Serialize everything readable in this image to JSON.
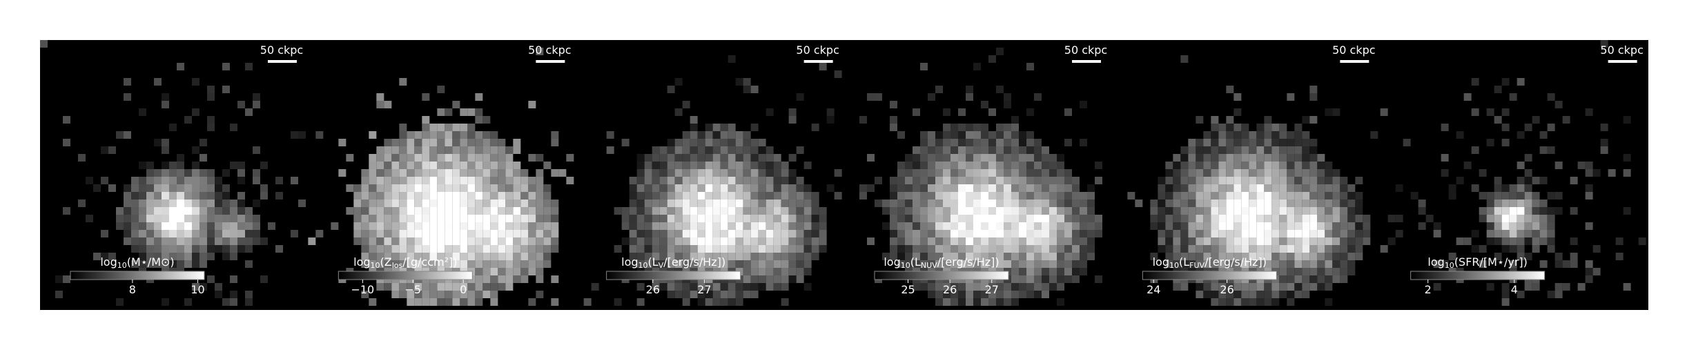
{
  "chart_data": [
    {
      "type": "image",
      "scale_label": "50 ckpc",
      "colorbar_label": [
        "log",
        "10",
        "(M⋆/M⊙)"
      ],
      "clim": [
        6.1,
        10.2
      ],
      "cticks": [
        8,
        10
      ]
    },
    {
      "type": "image",
      "scale_label": "50 ckpc",
      "colorbar_label": [
        "log",
        "10",
        "(Z",
        "los",
        "/[g/ccm²])"
      ],
      "clim": [
        -12.4,
        0.9
      ],
      "cticks": [
        {
          "value": -10,
          "label": "−10"
        },
        {
          "value": -5,
          "label": "−5"
        },
        0
      ]
    },
    {
      "type": "image",
      "scale_label": "50 ckpc",
      "colorbar_label": [
        "log",
        "10",
        "(L",
        "V",
        "/[erg/s/Hz])"
      ],
      "clim": [
        25.1,
        27.7
      ],
      "cticks": [
        26,
        27
      ]
    },
    {
      "type": "image",
      "scale_label": "50 ckpc",
      "colorbar_label": [
        "log",
        "10",
        "(L",
        "NUV",
        "/[erg/s/Hz])"
      ],
      "clim": [
        24.2,
        27.4
      ],
      "cticks": [
        25,
        26,
        27
      ]
    },
    {
      "type": "image",
      "scale_label": "50 ckpc",
      "colorbar_label": [
        "log",
        "10",
        "(L",
        "FUV",
        "/[erg/s/Hz])"
      ],
      "clim": [
        23.7,
        27.35
      ],
      "cticks": [
        24,
        26
      ]
    },
    {
      "type": "image",
      "scale_label": "50 ckpc",
      "colorbar_label": [
        "log",
        "10",
        "(SFR/[M⋆/yr])"
      ],
      "clim": [
        1.6,
        4.7
      ],
      "cticks": [
        2,
        4
      ]
    }
  ]
}
